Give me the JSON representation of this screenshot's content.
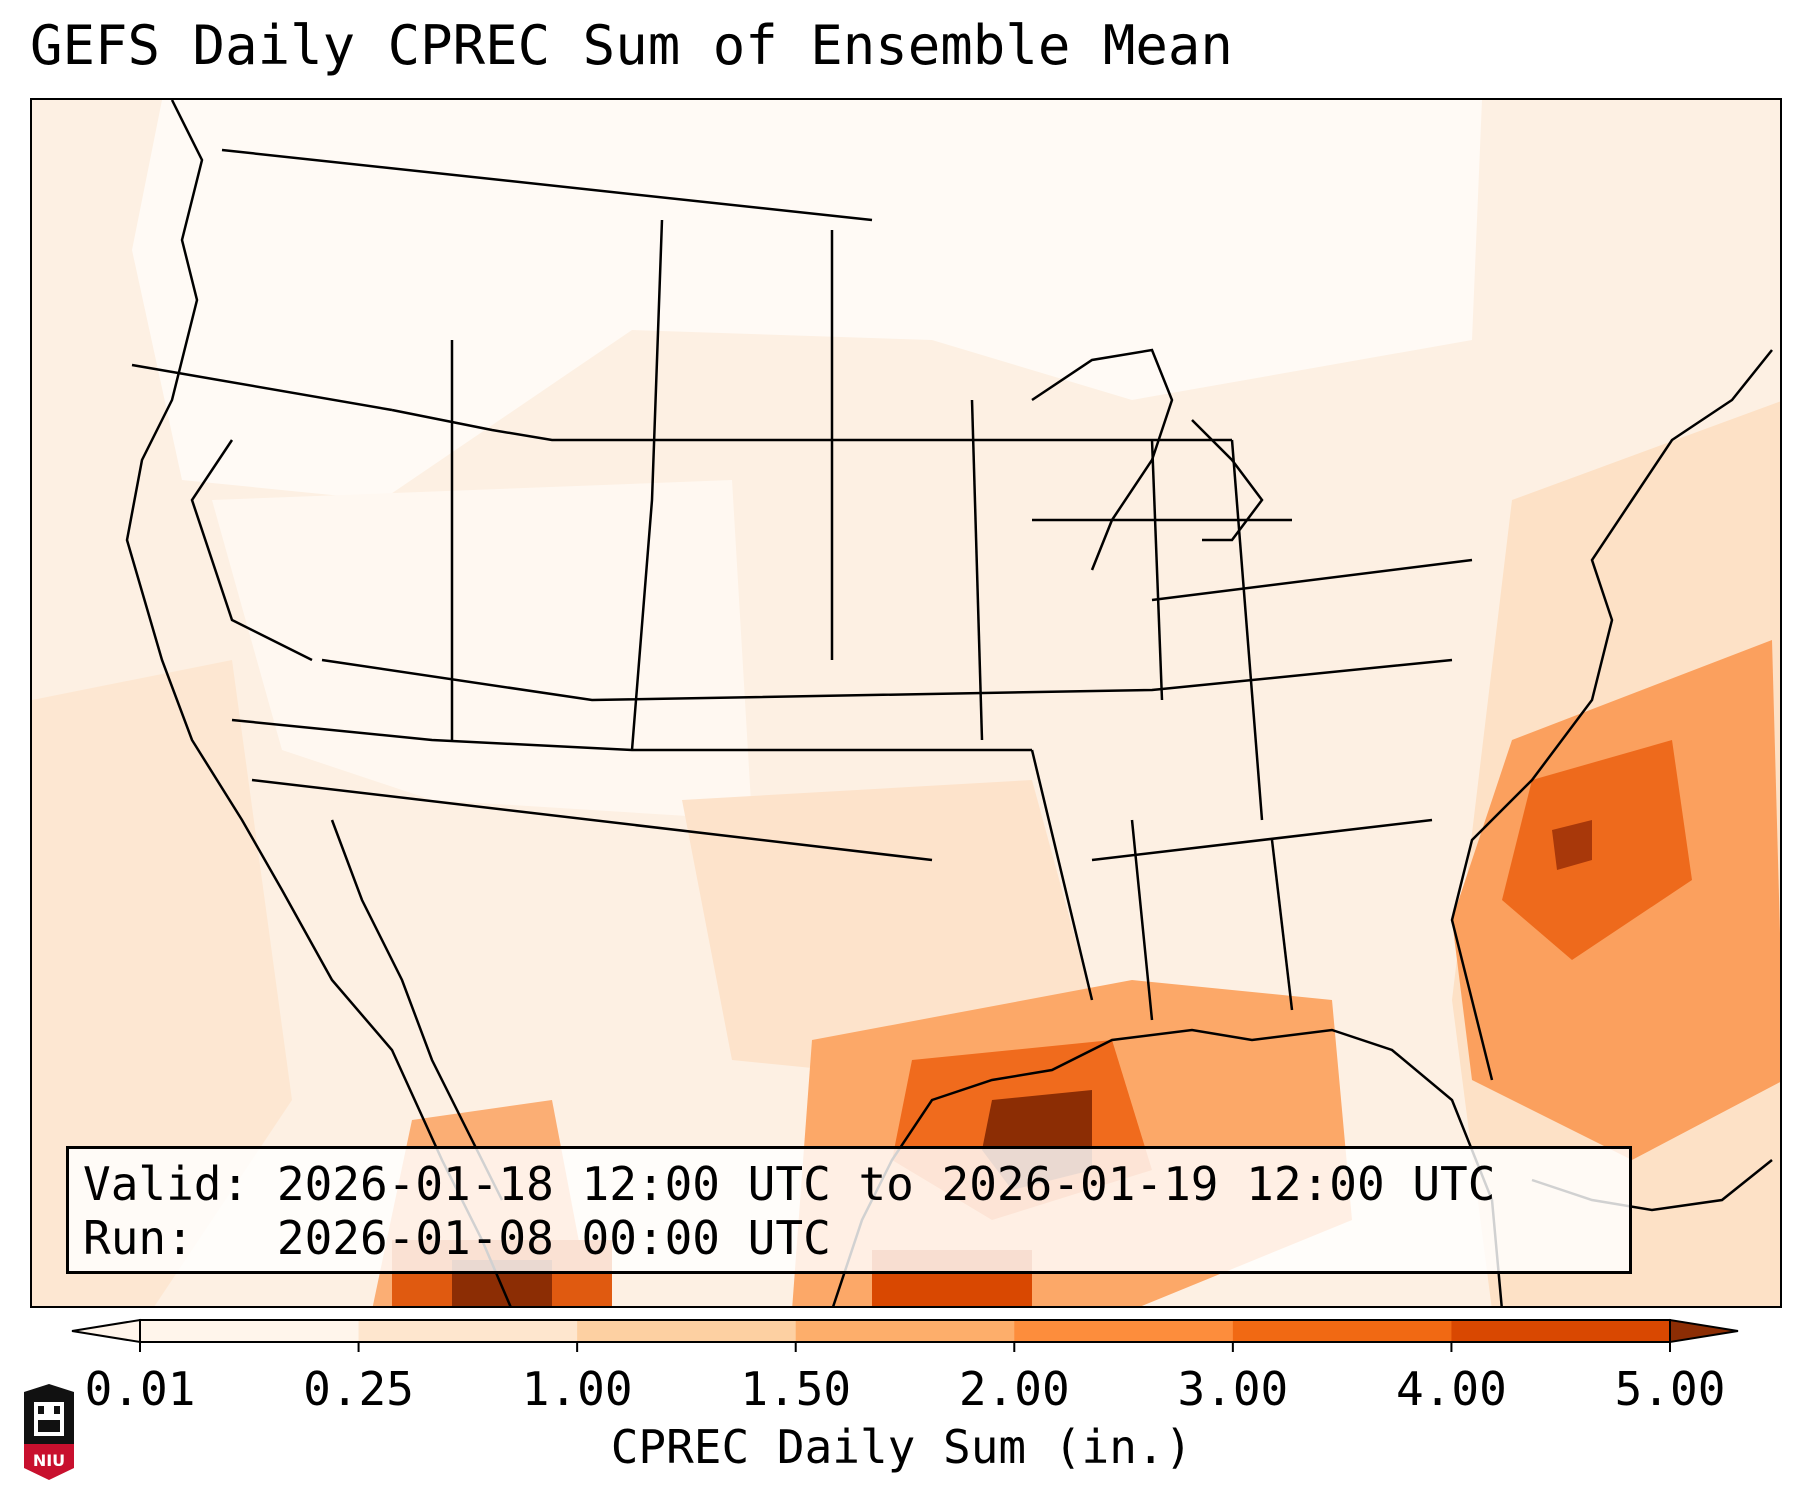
{
  "title": "GEFS Daily CPREC Sum of Ensemble Mean",
  "info": {
    "valid_label": "Valid:",
    "valid_value": "2026-01-18 12:00 UTC to 2026-01-19 12:00 UTC",
    "run_label": "Run:",
    "run_value": "2026-01-08 00:00 UTC"
  },
  "colorbar": {
    "label": "CPREC Daily Sum (in.)",
    "ticks": [
      "0.01",
      "0.25",
      "1.00",
      "1.50",
      "2.00",
      "3.00",
      "4.00",
      "5.00"
    ],
    "colors": [
      "#fff5eb",
      "#fee6ce",
      "#fdd0a2",
      "#fdae6b",
      "#fd8d3c",
      "#f16913",
      "#d94801",
      "#8c2d04"
    ]
  },
  "logo": {
    "text": "NIU",
    "colors": {
      "red": "#c8102e",
      "black": "#111111"
    }
  }
}
